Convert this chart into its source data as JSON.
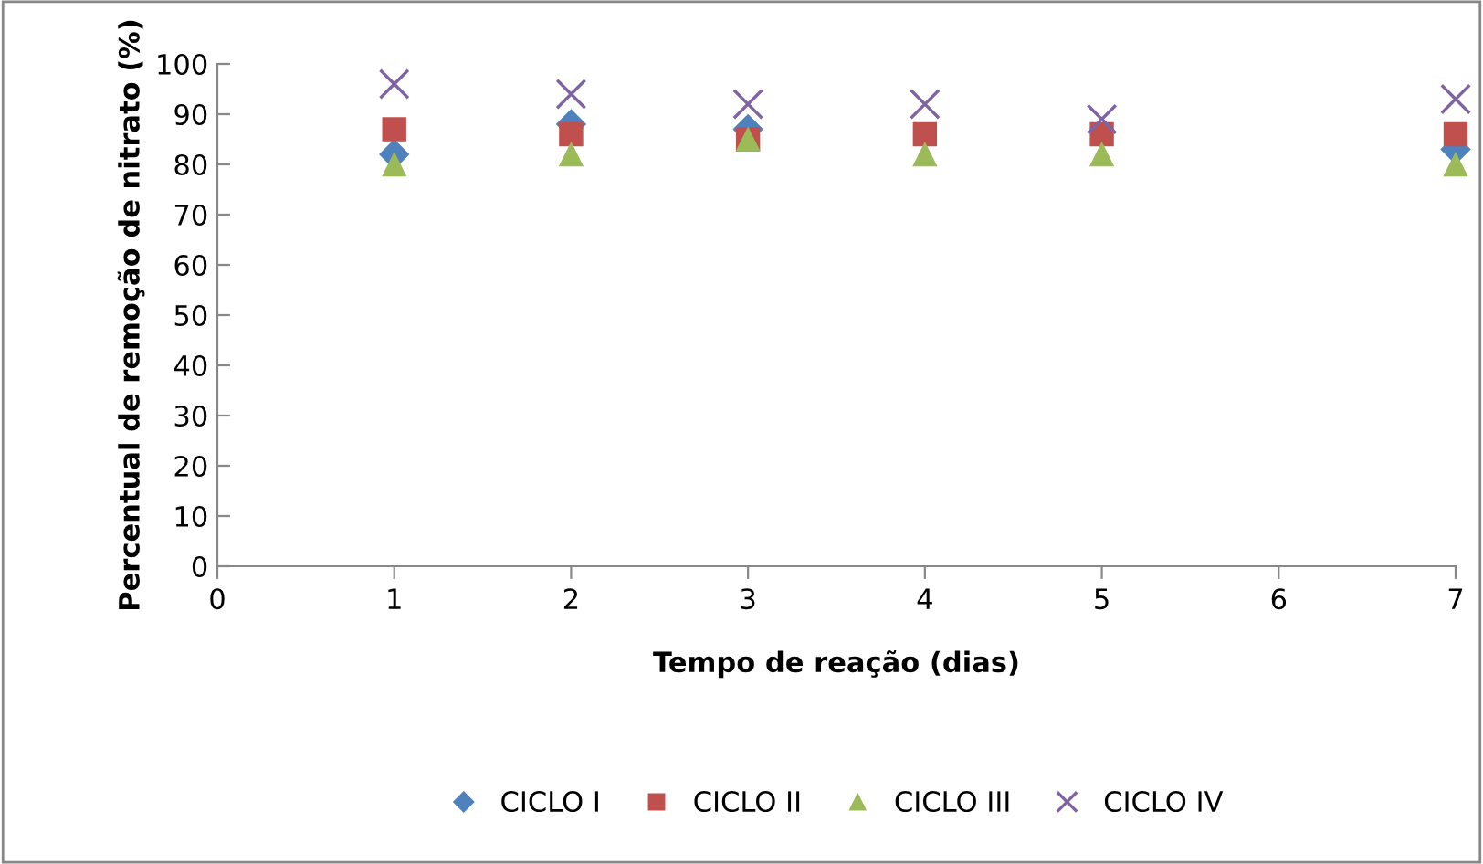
{
  "chart_data": {
    "type": "scatter",
    "xlabel": "Tempo de reação (dias)",
    "ylabel": "Percentual de remoção de nitrato (%)",
    "x": [
      1,
      2,
      3,
      4,
      5,
      7
    ],
    "series": [
      {
        "name": "CICLO I",
        "color": "#4f81bd",
        "marker": "diamond",
        "values": [
          82,
          88,
          87,
          null,
          null,
          83
        ]
      },
      {
        "name": "CICLO II",
        "color": "#c0504d",
        "marker": "square",
        "values": [
          87,
          86,
          85,
          86,
          86,
          86
        ]
      },
      {
        "name": "CICLO III",
        "color": "#9bbb59",
        "marker": "triangle",
        "values": [
          80,
          82,
          85,
          82,
          82,
          80
        ]
      },
      {
        "name": "CICLO IV",
        "color": "#8064a2",
        "marker": "cross",
        "values": [
          96,
          94,
          92,
          92,
          89,
          93
        ]
      }
    ],
    "xlim": [
      0,
      7
    ],
    "xticks": [
      0,
      1,
      2,
      3,
      4,
      5,
      6,
      7
    ],
    "ylim": [
      0,
      100
    ],
    "yticks": [
      0,
      10,
      20,
      30,
      40,
      50,
      60,
      70,
      80,
      90,
      100
    ],
    "grid": false,
    "legend": "bottom"
  }
}
